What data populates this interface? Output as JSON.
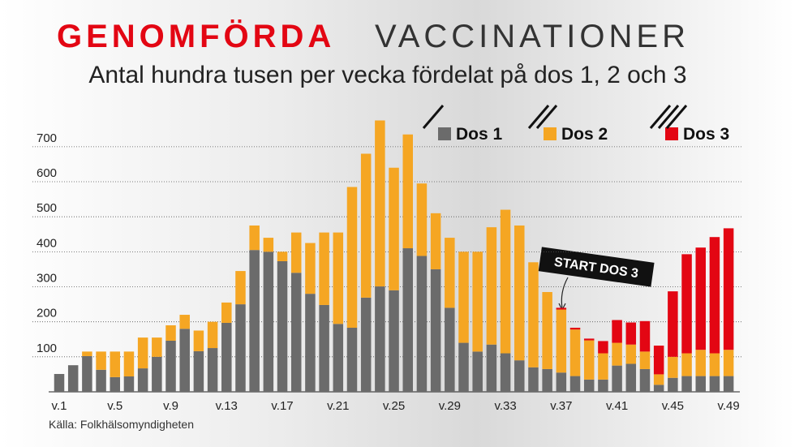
{
  "chart_data": {
    "type": "stacked-bar",
    "title": "GENOMFÖRDA",
    "title_rest": "VACCINATIONER",
    "subtitle": "Antal hundra tusen per vecka fördelat på dos 1, 2 och 3",
    "source": "Källa: Folkhälsomyndigheten",
    "annotation": "START DOS 3",
    "categories": [
      "v.1",
      null,
      null,
      null,
      "v.5",
      null,
      null,
      null,
      "v.9",
      null,
      null,
      null,
      "v.13",
      null,
      null,
      null,
      "v.17",
      null,
      null,
      null,
      "v.21",
      null,
      null,
      null,
      "v.25",
      null,
      null,
      null,
      "v.29",
      null,
      null,
      null,
      "v.33",
      null,
      null,
      null,
      "v.37",
      null,
      null,
      null,
      "v.41",
      null,
      null,
      null,
      "v.45",
      null,
      null,
      null,
      "v.49"
    ],
    "series": [
      {
        "name": "Dos 1",
        "color": "#6b6b6b",
        "values": [
          51,
          76,
          102,
          63,
          42,
          44,
          67,
          100,
          146,
          180,
          116,
          125,
          197,
          250,
          405,
          400,
          373,
          340,
          280,
          248,
          194,
          183,
          269,
          301,
          290,
          410,
          388,
          350,
          240,
          140,
          115,
          135,
          110,
          90,
          70,
          65,
          55,
          45,
          35,
          35,
          75,
          80,
          65,
          20,
          40,
          45,
          45,
          45,
          45
        ]
      },
      {
        "name": "Dos 2",
        "color": "#f5a623",
        "values": [
          0,
          0,
          13,
          52,
          73,
          71,
          88,
          55,
          44,
          40,
          59,
          75,
          58,
          95,
          70,
          40,
          27,
          115,
          145,
          207,
          261,
          402,
          411,
          474,
          350,
          325,
          207,
          160,
          200,
          260,
          285,
          335,
          410,
          385,
          300,
          220,
          180,
          133,
          112,
          75,
          65,
          55,
          50,
          30,
          60,
          65,
          75,
          65,
          75
        ]
      },
      {
        "name": "Dos 3",
        "color": "#e30613",
        "values": [
          0,
          0,
          0,
          0,
          0,
          0,
          0,
          0,
          0,
          0,
          0,
          0,
          0,
          0,
          0,
          0,
          0,
          0,
          0,
          0,
          0,
          0,
          0,
          0,
          0,
          0,
          0,
          0,
          0,
          0,
          0,
          0,
          0,
          0,
          0,
          0,
          5,
          5,
          5,
          35,
          65,
          63,
          87,
          82,
          187,
          283,
          292,
          332,
          347
        ]
      }
    ],
    "ylim": [
      0,
      790
    ],
    "yticks": [
      100,
      200,
      300,
      400,
      500,
      600,
      700
    ],
    "grid": true
  }
}
